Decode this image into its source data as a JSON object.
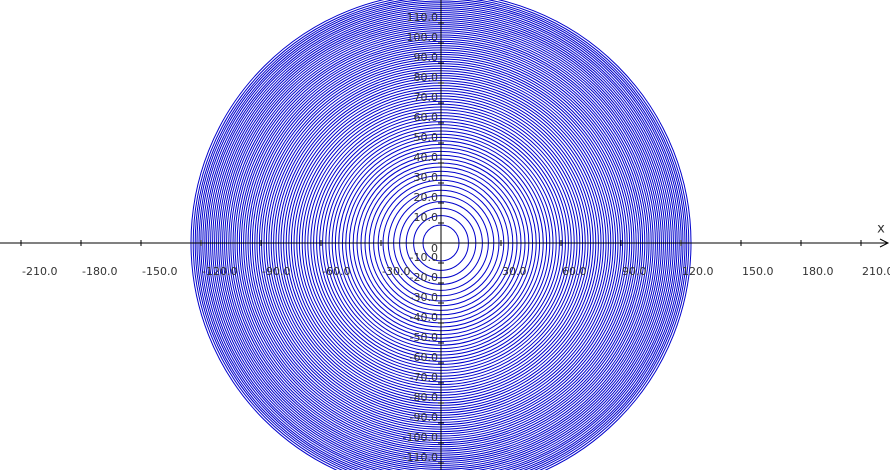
{
  "chart_data": {
    "type": "concentric",
    "x_label": "x",
    "origin_label": "0",
    "color": "#0000cc",
    "center": [
      0,
      0
    ],
    "radii": [
      9.0,
      13.7,
      17.4,
      20.7,
      23.7,
      26.4,
      29.0,
      31.4,
      33.7,
      35.9,
      38.0,
      40.0,
      42.0,
      43.9,
      45.8,
      47.6,
      49.3,
      51.1,
      52.8,
      54.4,
      56.0,
      57.6,
      59.2,
      60.7,
      62.2,
      63.7,
      65.1,
      66.6,
      68.0,
      69.4,
      70.8,
      72.1,
      73.5,
      74.8,
      76.1,
      77.4,
      78.7,
      80.0,
      81.2,
      82.5,
      83.7,
      84.9,
      86.1,
      87.3,
      88.5,
      89.7,
      90.8,
      92.0,
      93.1,
      94.3,
      95.4,
      96.5,
      97.6,
      98.7,
      99.8,
      100.8,
      101.9,
      103.0,
      104.0,
      105.1,
      106.1,
      107.2,
      108.2,
      109.2,
      110.2,
      111.2,
      112.2,
      113.2,
      114.2,
      115.2,
      116.2,
      117.2,
      118.1,
      119.1,
      120.1,
      121.0,
      122.0,
      122.9,
      123.9,
      125.0
    ],
    "xlim": [
      -220.5,
      224.5
    ],
    "ylim": [
      -113.5,
      121.5
    ],
    "xticks": [
      {
        "value": -210,
        "label": "-210.0"
      },
      {
        "value": -180,
        "label": "-180.0"
      },
      {
        "value": -150,
        "label": "-150.0"
      },
      {
        "value": -120,
        "label": "-120.0"
      },
      {
        "value": -90,
        "label": "-90.0"
      },
      {
        "value": -60,
        "label": "-60.0"
      },
      {
        "value": -30,
        "label": "-30.0"
      },
      {
        "value": 30,
        "label": "30.0"
      },
      {
        "value": 60,
        "label": "60.0"
      },
      {
        "value": 90,
        "label": "90.0"
      },
      {
        "value": 120,
        "label": "120.0"
      },
      {
        "value": 150,
        "label": "150.0"
      },
      {
        "value": 180,
        "label": "180.0"
      },
      {
        "value": 210,
        "label": "210.0"
      }
    ],
    "yticks": [
      {
        "value": 110,
        "label": "110.0"
      },
      {
        "value": 100,
        "label": "100.0"
      },
      {
        "value": 90,
        "label": "90.0"
      },
      {
        "value": 80,
        "label": "80.0"
      },
      {
        "value": 70,
        "label": "70.0"
      },
      {
        "value": 60,
        "label": "60.0"
      },
      {
        "value": 50,
        "label": "50.0"
      },
      {
        "value": 40,
        "label": "40.0"
      },
      {
        "value": 30,
        "label": "30.0"
      },
      {
        "value": 20,
        "label": "20.0"
      },
      {
        "value": 10,
        "label": "10.0"
      },
      {
        "value": -10,
        "label": "-10.0"
      },
      {
        "value": -20,
        "label": "-20.0"
      },
      {
        "value": -30,
        "label": "-30.0"
      },
      {
        "value": -40,
        "label": "-40.0"
      },
      {
        "value": -50,
        "label": "-50.0"
      },
      {
        "value": -60,
        "label": "-60.0"
      },
      {
        "value": -70,
        "label": "-70.0"
      },
      {
        "value": -80,
        "label": "-80.0"
      },
      {
        "value": -90,
        "label": "-90.0"
      },
      {
        "value": -100,
        "label": "-100.0"
      },
      {
        "value": -110,
        "label": "-110.0"
      }
    ]
  }
}
